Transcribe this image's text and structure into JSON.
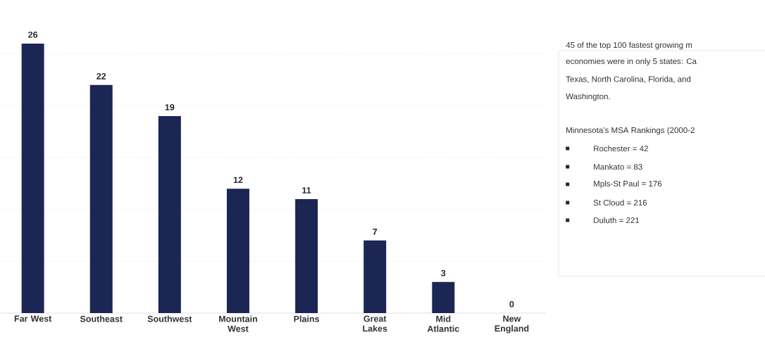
{
  "chart_data": {
    "type": "bar",
    "categories": [
      "Far West",
      "Southeast",
      "Southwest",
      "Mountain West",
      "Plains",
      "Great Lakes",
      "Mid Atlantic",
      "New England"
    ],
    "values": [
      26,
      22,
      19,
      12,
      11,
      7,
      3,
      0
    ],
    "color": "#1b2654",
    "yticks": [
      {
        "value": 5,
        "label": null
      },
      {
        "value": 10,
        "label": null
      },
      {
        "value": 15,
        "label": null
      },
      {
        "value": 20,
        "label": null
      },
      {
        "value": 25,
        "label": null
      }
    ],
    "grid": "y",
    "tick_labels": "x",
    "data_labels": true,
    "annotations": [
      "45 of the top 100 fastest growing m",
      "economies were in only 5 states: Ca",
      "Texas, North Carolina, Florida, and",
      "Washington.",
      "Minnesota’s MSA Rankings (2000-2",
      "Rochester = 42",
      "Mankato = 83",
      "Mpls-St Paul = 176",
      "St Cloud = 216",
      "Duluth = 221"
    ]
  }
}
